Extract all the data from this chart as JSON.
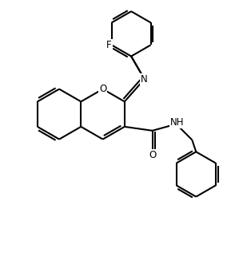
{
  "background_color": "#ffffff",
  "line_color": "#000000",
  "line_width": 1.5,
  "font_size": 8.5,
  "figsize": [
    2.84,
    3.26
  ],
  "dpi": 100,
  "xlim": [
    0,
    8.5
  ],
  "ylim": [
    0,
    9.8
  ]
}
